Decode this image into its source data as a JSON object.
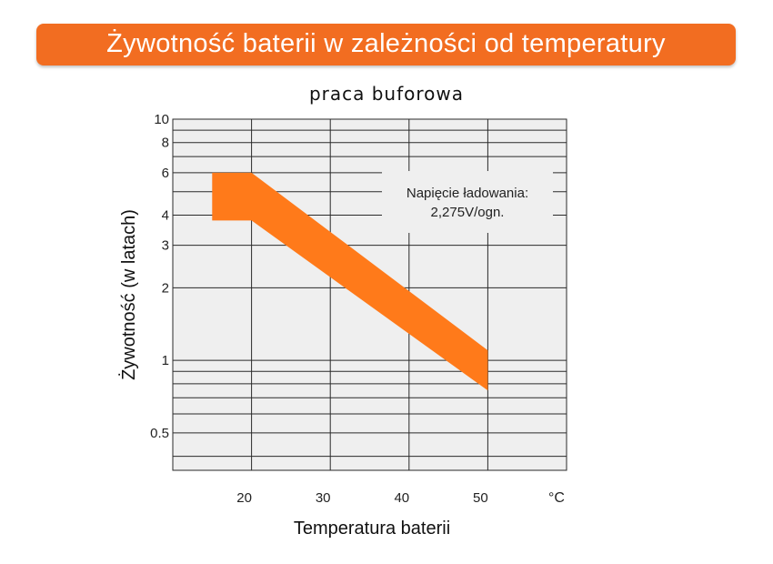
{
  "banner": {
    "title": "Żywotność baterii w zależności od temperatury"
  },
  "chart_data": {
    "type": "area",
    "title": "praca buforowa",
    "xlabel": "Temperatura baterii",
    "ylabel": "Żywotność (w latach)",
    "x_unit": "°C",
    "x_scale": "linear",
    "y_scale": "log",
    "xlim": [
      10,
      60
    ],
    "ylim": [
      0.35,
      10
    ],
    "x_ticks": [
      20,
      30,
      40,
      50
    ],
    "x_tick_labels": [
      "20",
      "30",
      "40",
      "50"
    ],
    "y_ticks": [
      0.5,
      1,
      2,
      3,
      4,
      6,
      8,
      10
    ],
    "y_tick_labels": [
      "0.5",
      "1",
      "2",
      "3",
      "4",
      "6",
      "8",
      "10"
    ],
    "y_gridlines": [
      0.4,
      0.5,
      0.6,
      0.7,
      0.8,
      0.9,
      1,
      2,
      3,
      4,
      5,
      6,
      7,
      8,
      9,
      10
    ],
    "grid": true,
    "series": [
      {
        "x": [
          15,
          20,
          50
        ],
        "upper": [
          6,
          6,
          1.1
        ],
        "lower": [
          3.8,
          3.8,
          0.75
        ]
      }
    ],
    "series_color": "#ff7a1a",
    "annotation": {
      "line1": "Napięcie ładowania:",
      "line2": "2,275V/ogn.",
      "x": 45,
      "y": 4.5
    }
  }
}
